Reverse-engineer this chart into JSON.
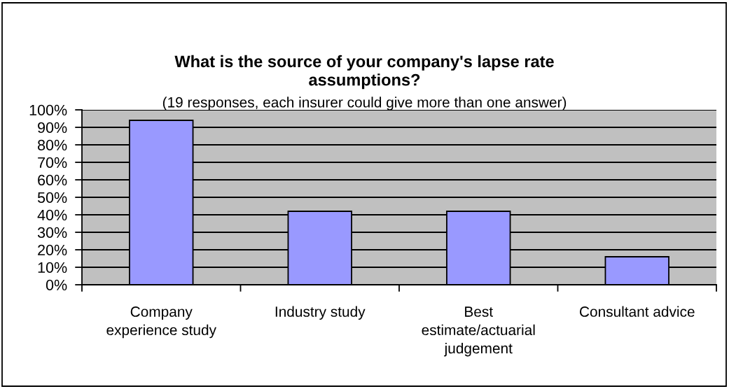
{
  "chart_data": {
    "type": "bar",
    "title": "What is the source of your company's lapse rate\nassumptions?",
    "subtitle": "(19 responses, each insurer could give more than one answer)",
    "categories": [
      "Company\nexperience study",
      "Industry study",
      "Best\nestimate/actuarial\njudgement",
      "Consultant advice"
    ],
    "values": [
      94,
      42,
      42,
      16
    ],
    "color": "#9999ff",
    "ylim": [
      0,
      100
    ],
    "yticks": [
      {
        "value": 0,
        "label": "0%"
      },
      {
        "value": 10,
        "label": "10%"
      },
      {
        "value": 20,
        "label": "20%"
      },
      {
        "value": 30,
        "label": "30%"
      },
      {
        "value": 40,
        "label": "40%"
      },
      {
        "value": 50,
        "label": "50%"
      },
      {
        "value": 60,
        "label": "60%"
      },
      {
        "value": 70,
        "label": "70%"
      },
      {
        "value": 80,
        "label": "80%"
      },
      {
        "value": 90,
        "label": "90%"
      },
      {
        "value": 100,
        "label": "100%"
      }
    ],
    "grid": "y",
    "legend": false
  }
}
